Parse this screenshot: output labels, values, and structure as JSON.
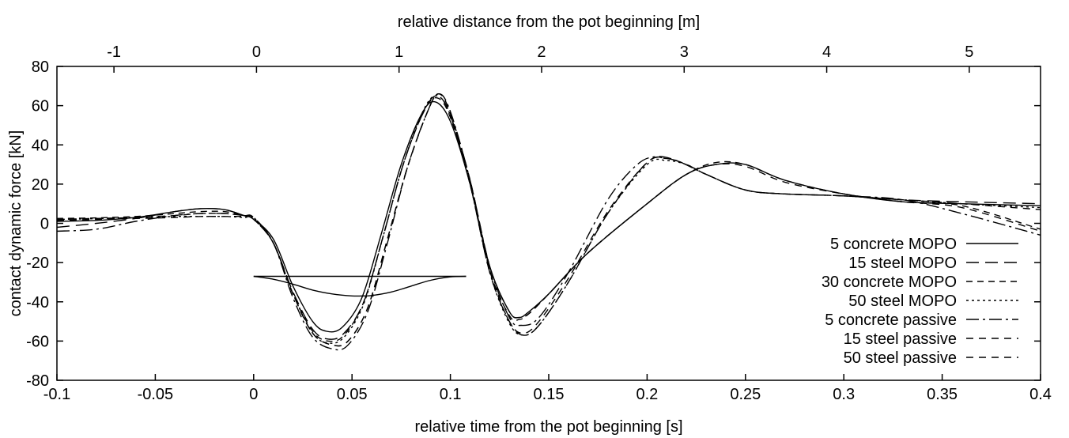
{
  "chart_data": {
    "type": "line",
    "title": "",
    "xlabel": "relative time from the pot beginning [s]",
    "x2label": "relative distance from the pot beginning [m]",
    "ylabel": "contact dynamic force [kN]",
    "xlim": [
      -0.1,
      0.4
    ],
    "ylim": [
      -80,
      80
    ],
    "x2lim": [
      -1.4,
      5.5
    ],
    "xticks": [
      "-0.1",
      "-0.05",
      "0",
      "0.05",
      "0.1",
      "0.15",
      "0.2",
      "0.25",
      "0.3",
      "0.35",
      "0.4"
    ],
    "yticks": [
      "-80",
      "-60",
      "-40",
      "-20",
      "0",
      "20",
      "40",
      "60",
      "80"
    ],
    "x2ticks": [
      "-1",
      "0",
      "1",
      "2",
      "3",
      "4",
      "5"
    ],
    "grid": false,
    "legend_position": "bottom-right",
    "series": [
      {
        "name": "5 concrete MOPO",
        "dash": "solid",
        "x": [
          -0.1,
          -0.08,
          -0.06,
          -0.04,
          -0.027,
          -0.015,
          -0.005,
          0,
          0.01,
          0.02,
          0.03,
          0.037,
          0.045,
          0.055,
          0.065,
          0.075,
          0.085,
          0.092,
          0.1,
          0.11,
          0.12,
          0.13,
          0.135,
          0.14,
          0.15,
          0.17,
          0.2,
          0.22,
          0.235,
          0.25,
          0.27,
          0.3,
          0.33,
          0.36,
          0.4
        ],
        "y": [
          1,
          1.5,
          3,
          6,
          7.5,
          7,
          4,
          2,
          -8,
          -32,
          -50,
          -55,
          -53,
          -38,
          -5,
          30,
          55,
          62,
          52,
          20,
          -22,
          -45,
          -48,
          -45,
          -36,
          -15,
          10,
          25,
          30,
          30,
          22,
          15,
          11,
          10,
          9
        ]
      },
      {
        "name": "15 steel MOPO",
        "dash": "16,8",
        "x": [
          -0.1,
          -0.08,
          -0.06,
          -0.04,
          -0.027,
          -0.015,
          -0.005,
          0,
          0.01,
          0.02,
          0.03,
          0.038,
          0.046,
          0.056,
          0.066,
          0.076,
          0.086,
          0.093,
          0.1,
          0.11,
          0.12,
          0.13,
          0.137,
          0.145,
          0.16,
          0.18,
          0.2,
          0.21,
          0.22,
          0.23,
          0.25,
          0.27,
          0.3,
          0.33,
          0.36,
          0.4
        ],
        "y": [
          -2,
          0,
          2.5,
          6,
          7.5,
          7,
          4,
          2,
          -10,
          -35,
          -54,
          -59,
          -56,
          -40,
          -6,
          30,
          56,
          65,
          55,
          20,
          -25,
          -50,
          -57,
          -52,
          -30,
          5,
          31,
          33,
          30,
          25,
          17,
          15,
          14,
          12,
          11,
          10
        ]
      },
      {
        "name": "30 concrete MOPO",
        "dash": "8,6",
        "x": [
          -0.1,
          -0.08,
          -0.06,
          -0.04,
          -0.027,
          -0.015,
          -0.005,
          0,
          0.01,
          0.02,
          0.03,
          0.038,
          0.046,
          0.056,
          0.066,
          0.076,
          0.086,
          0.093,
          0.1,
          0.11,
          0.12,
          0.13,
          0.135,
          0.14,
          0.15,
          0.17,
          0.2,
          0.22,
          0.235,
          0.25,
          0.27,
          0.3,
          0.33,
          0.36,
          0.4
        ],
        "y": [
          2.5,
          2.8,
          3.5,
          5,
          6,
          6,
          4,
          2,
          -10,
          -36,
          -55,
          -60,
          -57,
          -40,
          -6,
          30,
          56,
          64,
          54,
          20,
          -24,
          -47,
          -49,
          -46,
          -36,
          -15,
          10,
          25,
          31,
          30,
          22,
          15,
          11,
          9,
          -3
        ]
      },
      {
        "name": "50 steel MOPO",
        "dash": "3,4",
        "x": [
          -0.1,
          -0.08,
          -0.06,
          -0.04,
          -0.027,
          -0.015,
          -0.005,
          0,
          0.01,
          0.02,
          0.03,
          0.038,
          0.046,
          0.056,
          0.066,
          0.076,
          0.086,
          0.093,
          0.1,
          0.11,
          0.12,
          0.13,
          0.137,
          0.145,
          0.16,
          0.18,
          0.2,
          0.21,
          0.22,
          0.23,
          0.25,
          0.27,
          0.3,
          0.33,
          0.36,
          0.4
        ],
        "y": [
          2,
          2.4,
          3,
          3.5,
          3.5,
          3.5,
          3,
          2.5,
          -10,
          -36,
          -56,
          -61,
          -58,
          -41,
          -6,
          30,
          57,
          65,
          55,
          20,
          -25,
          -51,
          -57,
          -52,
          -30,
          5,
          30,
          32,
          30,
          25,
          17,
          15,
          14,
          12,
          10,
          8
        ]
      },
      {
        "name": "5 concrete passive",
        "dash": "16,5,3,5",
        "x": [
          -0.1,
          -0.08,
          -0.06,
          -0.04,
          -0.027,
          -0.015,
          -0.005,
          0,
          0.01,
          0.02,
          0.03,
          0.04,
          0.048,
          0.058,
          0.068,
          0.078,
          0.088,
          0.094,
          0.1,
          0.11,
          0.12,
          0.13,
          0.136,
          0.145,
          0.16,
          0.18,
          0.195,
          0.205,
          0.215,
          0.23,
          0.25,
          0.27,
          0.3,
          0.33,
          0.36,
          0.4
        ],
        "y": [
          -4,
          -3,
          1,
          4,
          5,
          5,
          4,
          3,
          -10,
          -38,
          -58,
          -64,
          -62,
          -45,
          -10,
          28,
          56,
          66,
          57,
          22,
          -22,
          -48,
          -52,
          -48,
          -25,
          12,
          30,
          34,
          32,
          25,
          17,
          15,
          14,
          12,
          5,
          -6
        ]
      },
      {
        "name": "15 steel passive",
        "dash": "9,7",
        "x": [
          -0.1,
          -0.08,
          -0.06,
          -0.04,
          -0.027,
          -0.015,
          -0.005,
          0,
          0.01,
          0.02,
          0.03,
          0.04,
          0.048,
          0.058,
          0.068,
          0.078,
          0.088,
          0.094,
          0.1,
          0.11,
          0.12,
          0.13,
          0.137,
          0.145,
          0.16,
          0.18,
          0.2,
          0.21,
          0.22,
          0.23,
          0.25,
          0.27,
          0.3,
          0.33,
          0.36,
          0.4
        ],
        "y": [
          2,
          2.5,
          3,
          4,
          5,
          5,
          4,
          3,
          -10,
          -36,
          -56,
          -62,
          -60,
          -43,
          -8,
          28,
          56,
          66,
          56,
          22,
          -24,
          -50,
          -56,
          -50,
          -28,
          6,
          31,
          33,
          30,
          25,
          17,
          15,
          14,
          12,
          10,
          7
        ]
      },
      {
        "name": "50 steel passive",
        "dash": "9,7",
        "x": [
          -0.1,
          -0.08,
          -0.06,
          -0.04,
          -0.027,
          -0.015,
          -0.005,
          0,
          0.01,
          0.02,
          0.03,
          0.04,
          0.048,
          0.058,
          0.068,
          0.078,
          0.088,
          0.094,
          0.1,
          0.11,
          0.12,
          0.13,
          0.135,
          0.14,
          0.15,
          0.17,
          0.2,
          0.22,
          0.235,
          0.25,
          0.27,
          0.3,
          0.33,
          0.36,
          0.4
        ],
        "y": [
          1.5,
          2,
          2.5,
          3,
          3.5,
          3.5,
          3.5,
          3,
          -10,
          -36,
          -56,
          -62,
          -60,
          -43,
          -8,
          28,
          56,
          66,
          56,
          22,
          -22,
          -45,
          -48,
          -46,
          -36,
          -15,
          10,
          25,
          30,
          29,
          21,
          15,
          11,
          8,
          -4
        ]
      }
    ],
    "annotations": [
      {
        "name": "pot-shape",
        "x": [
          0,
          0.01,
          0.02,
          0.03,
          0.04,
          0.05,
          0.055,
          0.06,
          0.07,
          0.08,
          0.09,
          0.1,
          0.108
        ],
        "y": [
          -27,
          -28.5,
          -31,
          -34,
          -36,
          -37,
          -37,
          -36.8,
          -35,
          -32,
          -29,
          -27.3,
          -27
        ]
      },
      {
        "name": "pot-top-line",
        "x": [
          0,
          0.108
        ],
        "y": [
          -27,
          -27
        ]
      }
    ]
  }
}
